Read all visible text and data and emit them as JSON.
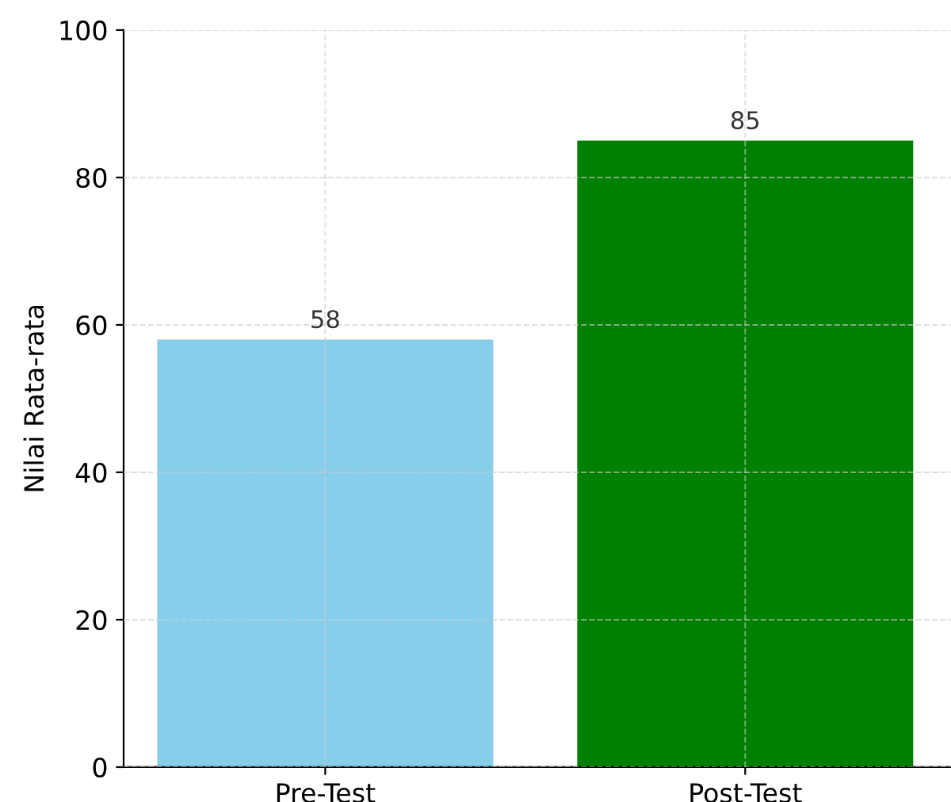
{
  "chart_data": {
    "type": "bar",
    "ylabel": "Nilai Rata-rata",
    "categories": [
      "Pre-Test",
      "Post-Test"
    ],
    "values": [
      58,
      85
    ],
    "colors": [
      "#87ceeb",
      "#008000"
    ],
    "ylim": [
      0,
      100
    ],
    "yticks": [
      0,
      20,
      40,
      60,
      80,
      100
    ],
    "grid": true,
    "data_labels": true
  }
}
